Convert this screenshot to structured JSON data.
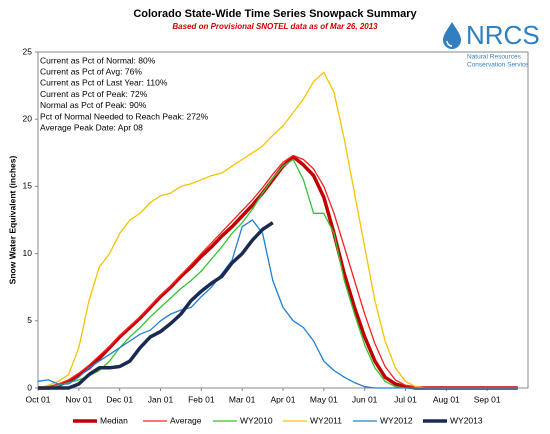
{
  "chart_data": {
    "type": "line",
    "title": "Colorado State-Wide Time Series Snowpack Summary",
    "subtitle": "Based on Provisional SNOTEL data as of Mar 26, 2013",
    "logo_text": "NRCS",
    "logo_subtitle": [
      "Natural Resources",
      "Conservation Service"
    ],
    "annotations": [
      "Current as Pct of Normal: 80%",
      "Current as Pct of Avg: 76%",
      "Current as Pct of Last Year: 110%",
      "Current as Pct of Peak: 72%",
      "Normal as Pct of Peak: 90%",
      "Pct of Normal Needed to Reach Peak: 272%",
      "Average Peak Date: Apr 08"
    ],
    "y_label": "Snow Water Equivalent (inches)",
    "categories": [
      "Oct 01",
      null,
      null,
      null,
      "Nov 01",
      null,
      null,
      null,
      "Dec 01",
      null,
      null,
      null,
      "Jan 01",
      null,
      null,
      null,
      "Feb 01",
      null,
      null,
      null,
      "Mar 01",
      null,
      null,
      null,
      "Apr 01",
      null,
      null,
      null,
      "May 01",
      null,
      null,
      null,
      "Jun 01",
      null,
      null,
      null,
      "Jul 01",
      null,
      null,
      null,
      "Aug 01",
      null,
      null,
      null,
      "Sep 01",
      null,
      null,
      null
    ],
    "ylim": [
      0,
      25
    ],
    "yticks": [
      0,
      5,
      10,
      15,
      20,
      25
    ],
    "grid": false,
    "legend": "bottom",
    "series": [
      {
        "name": "Median",
        "color": "#c00000",
        "width": 3.5,
        "values": [
          0,
          0,
          0.2,
          0.5,
          1.0,
          1.5,
          2.2,
          3.0,
          3.8,
          4.5,
          5.2,
          6.0,
          6.8,
          7.5,
          8.3,
          9.0,
          9.8,
          10.5,
          11.3,
          12.0,
          12.8,
          13.6,
          14.5,
          15.5,
          16.5,
          17.2,
          16.6,
          15.8,
          14.2,
          11.5,
          8.5,
          6.0,
          3.8,
          2.0,
          0.8,
          0.3,
          0.1,
          0,
          0,
          0,
          0,
          0,
          0,
          0,
          0,
          0,
          0,
          0
        ]
      },
      {
        "name": "Average",
        "color": "#ff2020",
        "width": 1.3,
        "values": [
          0,
          0.1,
          0.3,
          0.6,
          1.1,
          1.7,
          2.4,
          3.1,
          3.9,
          4.6,
          5.3,
          6.1,
          6.9,
          7.6,
          8.4,
          9.2,
          10.0,
          10.8,
          11.6,
          12.4,
          13.2,
          14.0,
          14.9,
          15.9,
          16.8,
          17.3,
          17.0,
          16.3,
          15.0,
          13.0,
          10.5,
          8.0,
          5.5,
          3.3,
          1.6,
          0.6,
          0.2,
          0.1,
          0,
          0,
          0,
          0,
          0,
          0,
          0,
          0,
          0,
          0
        ]
      },
      {
        "name": "WY2010",
        "color": "#33c433",
        "width": 1.3,
        "values": [
          0,
          0,
          0.2,
          0.4,
          0.6,
          0.9,
          1.3,
          2.0,
          3.0,
          3.8,
          4.5,
          5.3,
          6.0,
          6.7,
          7.4,
          8.0,
          8.7,
          9.6,
          10.5,
          11.5,
          12.3,
          13.3,
          14.5,
          15.6,
          16.5,
          17.0,
          15.5,
          13.0,
          13.0,
          11.5,
          8.0,
          5.5,
          3.2,
          1.5,
          0.5,
          0.1,
          0,
          0,
          0,
          0,
          0,
          0,
          0,
          0,
          0,
          0,
          0,
          0
        ]
      },
      {
        "name": "WY2011",
        "color": "#f5c400",
        "width": 1.3,
        "values": [
          0,
          0.2,
          0.5,
          1.0,
          3.0,
          6.5,
          9.0,
          10.0,
          11.5,
          12.5,
          13.0,
          13.8,
          14.3,
          14.5,
          15.0,
          15.2,
          15.5,
          15.8,
          16.0,
          16.5,
          17.0,
          17.5,
          18.0,
          18.8,
          19.5,
          20.5,
          21.5,
          22.8,
          23.5,
          22.0,
          18.5,
          14.5,
          10.5,
          6.5,
          3.5,
          1.5,
          0.5,
          0.1,
          0,
          0,
          0,
          0,
          0,
          0,
          0,
          0,
          0,
          0
        ]
      },
      {
        "name": "WY2012",
        "color": "#1e7fd8",
        "width": 1.3,
        "values": [
          0.5,
          0.6,
          0.3,
          0.3,
          0.8,
          1.5,
          2.0,
          2.5,
          3.0,
          3.5,
          4.0,
          4.3,
          5.0,
          5.5,
          5.8,
          6.0,
          6.8,
          7.5,
          8.5,
          9.5,
          12.0,
          12.5,
          11.5,
          8.0,
          6.0,
          5.0,
          4.5,
          3.5,
          2.0,
          1.3,
          0.8,
          0.4,
          0.1,
          0,
          0,
          0,
          0,
          0,
          0,
          0,
          0,
          0,
          0,
          0,
          0,
          0,
          0,
          0
        ]
      },
      {
        "name": "WY2013",
        "color": "#1a2a50",
        "width": 3.5,
        "values": [
          0,
          0,
          0,
          0,
          0.3,
          1.0,
          1.5,
          1.5,
          1.6,
          2.0,
          3.0,
          3.8,
          4.2,
          4.8,
          5.5,
          6.5,
          7.2,
          7.8,
          8.3,
          9.3,
          10.0,
          11.0,
          11.8,
          12.3,
          null,
          null,
          null,
          null,
          null,
          null,
          null,
          null,
          null,
          null,
          null,
          null,
          null,
          null,
          null,
          null,
          null,
          null,
          null,
          null,
          null,
          null,
          null,
          null
        ]
      }
    ]
  }
}
